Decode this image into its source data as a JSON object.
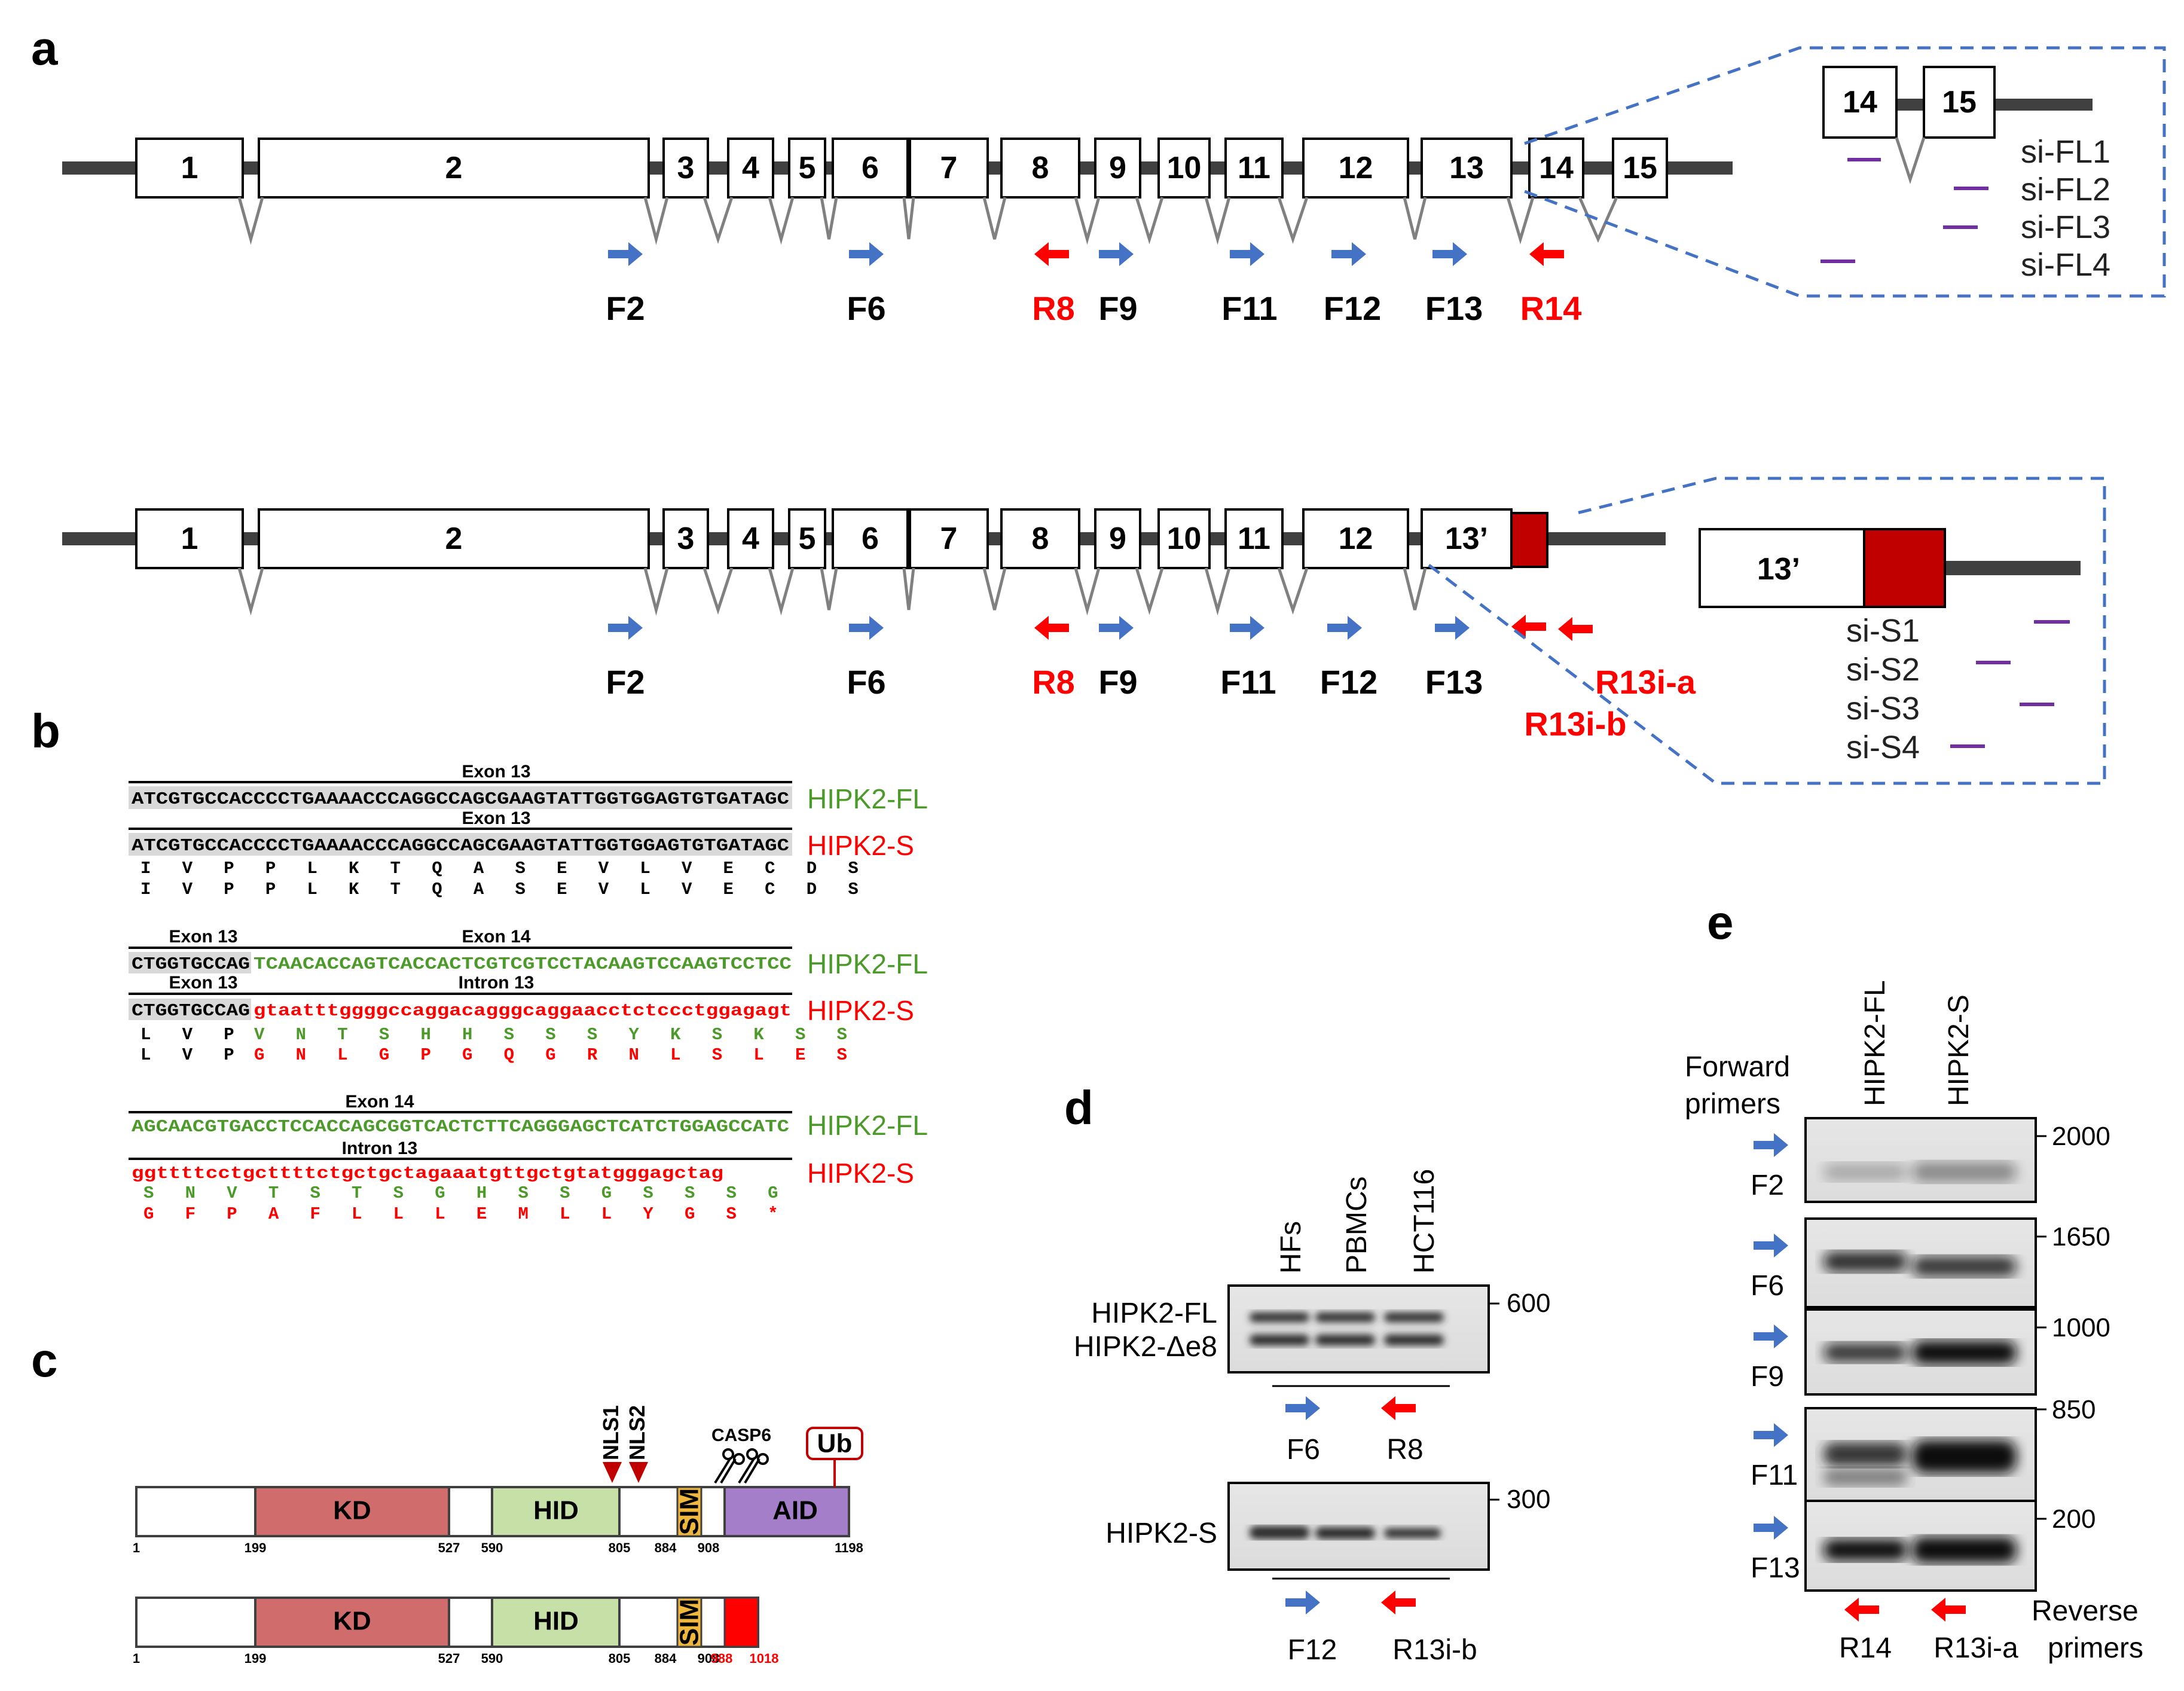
{
  "panels": {
    "a": "a",
    "b": "b",
    "c": "c",
    "d": "d",
    "e": "e"
  },
  "colors": {
    "blue": "#4472c4",
    "red": "#ff0000",
    "darkred": "#c00000",
    "green": "#4c9a2a",
    "purple": "#7030a0",
    "dashed": "#4472c4"
  },
  "panel_a": {
    "fl_exons": [
      "1",
      "2",
      "3",
      "4",
      "5",
      "6",
      "7",
      "8",
      "9",
      "10",
      "11",
      "12",
      "13",
      "14",
      "15"
    ],
    "s_exons": [
      "1",
      "2",
      "3",
      "4",
      "5",
      "6",
      "7",
      "8",
      "9",
      "10",
      "11",
      "12",
      "13’"
    ],
    "fl_primers": {
      "F2": "F2",
      "F6": "F6",
      "R8": "R8",
      "F9": "F9",
      "F11": "F11",
      "F12": "F12",
      "F13": "F13",
      "R14": "R14"
    },
    "s_primers": {
      "F2": "F2",
      "F6": "F6",
      "R8": "R8",
      "F9": "F9",
      "F11": "F11",
      "F12": "F12",
      "F13": "F13",
      "R13ia": "R13i-a",
      "R13ib": "R13i-b"
    },
    "inset_fl": {
      "ex14": "14",
      "ex15": "15",
      "si": [
        "si-FL1",
        "si-FL2",
        "si-FL3",
        "si-FL4"
      ]
    },
    "inset_s": {
      "ex13": "13’",
      "si": [
        "si-S1",
        "si-S2",
        "si-S3",
        "si-S4"
      ]
    }
  },
  "panel_b": {
    "blocks": [
      {
        "h1": "Exon 13",
        "seq1": "ATCGTGCCACCCCTGAAAACCCAGGCCAGCGAAGTATTGGTGGAGTGTGATAGC",
        "iso1": "HIPK2-FL",
        "h2": "Exon 13",
        "seq2": "ATCGTGCCACCCCTGAAAACCCAGGCCAGCGAAGTATTGGTGGAGTGTGATAGC",
        "iso2": "HIPK2-S",
        "aa1": "I   V   P   P   L   K   T   Q   A   S   E   V   L   V   E   C   D   S",
        "aa2": "I   V   P   P   L   K   T   Q   A   S   E   V   L   V   E   C   D   S"
      },
      {
        "h1a": "Exon 13",
        "h1b": "Exon 14",
        "seq1a": "CTGGTGCCAG",
        "seq1b": "TCAACACCAGTCACCACTCGTCGTCCTACAAGTCCAAGTCCTCC",
        "iso1": "HIPK2-FL",
        "h2a": "Exon 13",
        "h2b": "Intron 13",
        "seq2a": "CTGGTGCCAG",
        "seq2b": "gtaatttggggccaggacagggcaggaacctctccctggagagt",
        "iso2": "HIPK2-S",
        "aa1a": "L   V   P",
        "aa1b": "V   N   T   S   H   H   S   S   S   Y   K   S   K   S   S",
        "aa2a": "L   V   P",
        "aa2b": "G   N   L   G   P   G   Q   G   R   N   L   S   L   E   S"
      },
      {
        "h1": "Exon 14",
        "seq1": "AGCAACGTGACCTCCACCAGCGGTCACTCTTCAGGGAGCTCATCTGGAGCCATC",
        "iso1": "HIPK2-FL",
        "h2": "Intron 13",
        "seq2": "ggttttcctgcttttctgctgctagaaatgttgctgtatgggagctag",
        "iso2": "HIPK2-S",
        "aa1": "S   N   V   T   S   T   S   G   H   S   S   G   S   S   S   G",
        "aa2": "G   F   P   A   F   L   L   L   E   M   L   L   Y   G   S   *"
      }
    ]
  },
  "panel_c": {
    "domains": {
      "kd": "KD",
      "hid": "HID",
      "sim": "SIM",
      "aid": "AID",
      "ub": "Ub",
      "nls1": "NLS1",
      "nls2": "NLS2",
      "casp6": "CASP6"
    },
    "fl_positions": [
      "1",
      "199",
      "527",
      "590",
      "805",
      "884",
      "908",
      "1198"
    ],
    "s_positions": [
      "1",
      "199",
      "527",
      "590",
      "805",
      "884",
      "908",
      "988",
      "1018"
    ]
  },
  "panel_d": {
    "lanes": [
      "HFs",
      "PBMCs",
      "HCT116"
    ],
    "gel1_labels": [
      "HIPK2-FL",
      "HIPK2-Δe8"
    ],
    "gel1_marker": "600",
    "gel1_primers": [
      "F6",
      "R8"
    ],
    "gel2_label": "HIPK2-S",
    "gel2_marker": "300",
    "gel2_primers": [
      "F12",
      "R13i-b"
    ]
  },
  "panel_e": {
    "lanes": [
      "HIPK2-FL",
      "HIPK2-S"
    ],
    "forward_title": [
      "Forward",
      "primers"
    ],
    "reverse_title": [
      "Reverse",
      "primers"
    ],
    "rows": [
      {
        "primer": "F2",
        "marker": "2000"
      },
      {
        "primer": "F6",
        "marker": "1650"
      },
      {
        "primer": "F9",
        "marker": "1000"
      },
      {
        "primer": "F11",
        "marker": "850"
      },
      {
        "primer": "F13",
        "marker": "200"
      }
    ],
    "reverse": [
      "R14",
      "R13i-a"
    ]
  }
}
